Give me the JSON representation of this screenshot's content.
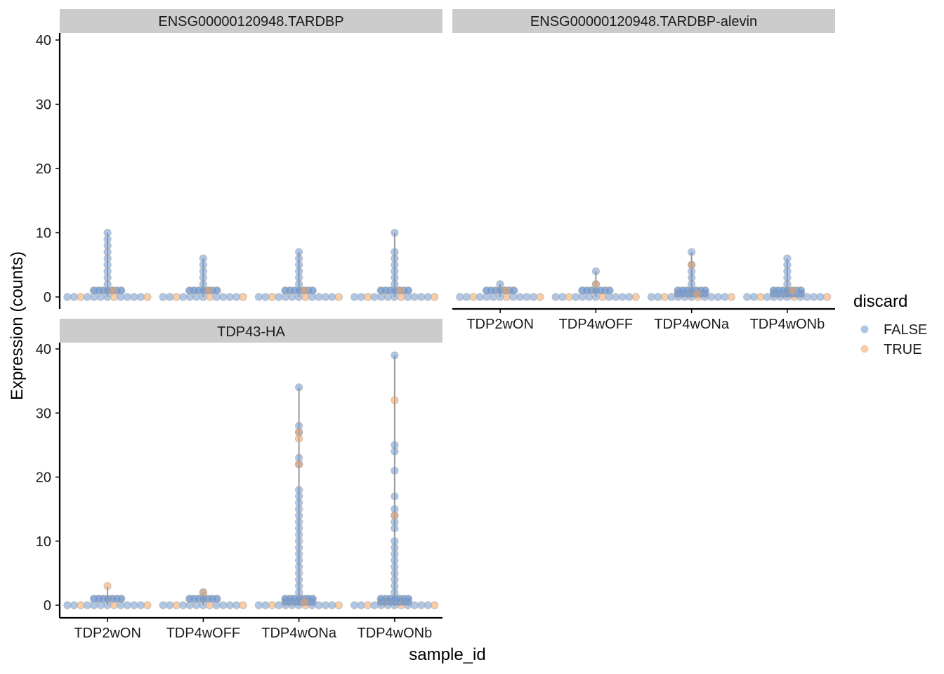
{
  "colors": {
    "false": "#6f98cf",
    "true": "#f0a35e",
    "violin": "#999999",
    "strip": "#cccccc",
    "axis": "#000000",
    "text": "#1a1a1a"
  },
  "chart_data": {
    "type": "scatter",
    "subtype": "faceted beeswarm (violin) plot",
    "xlabel": "sample_id",
    "ylabel": "Expression (counts)",
    "categories": [
      "TDP2wON",
      "TDP4wOFF",
      "TDP4wONa",
      "TDP4wONb"
    ],
    "ylim": [
      -1.5,
      41
    ],
    "yticks": [
      0,
      10,
      20,
      30,
      40
    ],
    "legend": {
      "title": "discard",
      "position": "right",
      "entries": [
        {
          "label": "FALSE",
          "color_key": "false"
        },
        {
          "label": "TRUE",
          "color_key": "true"
        }
      ]
    },
    "facets": [
      {
        "title": "ENSG00000120948.TARDBP",
        "show_x_labels": false,
        "groups": [
          {
            "sample": "TDP2wON",
            "max": 10,
            "false_levels": [
              0,
              1,
              2,
              3,
              4,
              5,
              6,
              7,
              8,
              9,
              10
            ],
            "true_levels": [
              0,
              1
            ]
          },
          {
            "sample": "TDP4wOFF",
            "max": 6,
            "false_levels": [
              0,
              1,
              2,
              3,
              4,
              5,
              6
            ],
            "true_levels": [
              0,
              1
            ]
          },
          {
            "sample": "TDP4wONa",
            "max": 7,
            "false_levels": [
              0,
              1,
              2,
              3,
              4,
              5,
              6,
              7
            ],
            "true_levels": [
              0,
              1
            ]
          },
          {
            "sample": "TDP4wONb",
            "max": 10,
            "false_levels": [
              0,
              1,
              2,
              3,
              4,
              5,
              6,
              7,
              10
            ],
            "true_levels": [
              0,
              1
            ]
          }
        ]
      },
      {
        "title": "ENSG00000120948.TARDBP-alevin",
        "show_x_labels": true,
        "groups": [
          {
            "sample": "TDP2wON",
            "max": 2,
            "false_levels": [
              0,
              1,
              2
            ],
            "true_levels": [
              0,
              1
            ]
          },
          {
            "sample": "TDP4wOFF",
            "max": 4,
            "false_levels": [
              0,
              1,
              2,
              4
            ],
            "true_levels": [
              0,
              2
            ]
          },
          {
            "sample": "TDP4wONa",
            "max": 7,
            "false_levels": [
              0,
              0.5,
              1,
              2,
              3,
              4,
              5,
              7
            ],
            "true_levels": [
              0,
              0.5,
              5
            ]
          },
          {
            "sample": "TDP4wONb",
            "max": 6,
            "false_levels": [
              0,
              0.5,
              1,
              2,
              3,
              4,
              5,
              6
            ],
            "true_levels": [
              0,
              1
            ]
          }
        ]
      },
      {
        "title": "TDP43-HA",
        "show_x_labels": true,
        "groups": [
          {
            "sample": "TDP2wON",
            "max": 3,
            "false_levels": [
              0,
              1
            ],
            "true_levels": [
              0,
              3
            ]
          },
          {
            "sample": "TDP4wOFF",
            "max": 2,
            "false_levels": [
              0,
              1,
              2
            ],
            "true_levels": [
              0,
              2
            ]
          },
          {
            "sample": "TDP4wONa",
            "max": 34,
            "false_levels": [
              0,
              0.5,
              1,
              2,
              3,
              4,
              5,
              6,
              7,
              8,
              9,
              10,
              11,
              12,
              13,
              14,
              15,
              16,
              17,
              18,
              22,
              23,
              27,
              28,
              34
            ],
            "true_levels": [
              0,
              0.5,
              22,
              26,
              27
            ]
          },
          {
            "sample": "TDP4wONb",
            "max": 39,
            "false_levels": [
              0,
              0.5,
              1,
              2,
              3,
              4,
              5,
              6,
              7,
              8,
              9,
              10,
              12,
              13,
              14,
              15,
              17,
              21,
              24,
              25,
              39
            ],
            "true_levels": [
              0,
              14,
              32
            ]
          }
        ]
      }
    ]
  }
}
